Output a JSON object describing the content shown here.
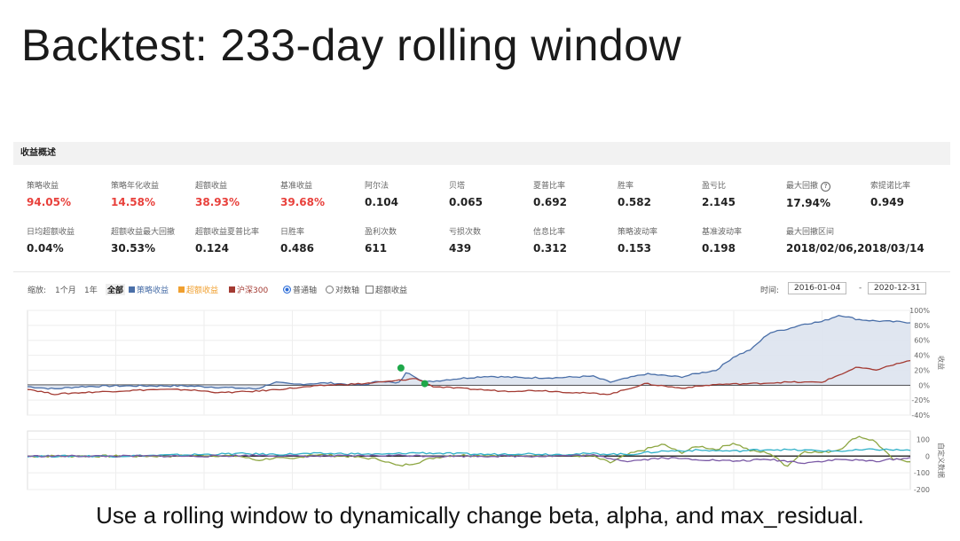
{
  "title": "Backtest: 233-day rolling window",
  "caption": "Use a rolling window to dynamically change beta, alpha, and max_residual.",
  "panel": {
    "header": "收益概述",
    "metrics_row1": [
      {
        "label": "策略收益",
        "value": "94.05%",
        "color": "#e8413c"
      },
      {
        "label": "策略年化收益",
        "value": "14.58%",
        "color": "#e8413c"
      },
      {
        "label": "超额收益",
        "value": "38.93%",
        "color": "#e8413c"
      },
      {
        "label": "基准收益",
        "value": "39.68%",
        "color": "#e8413c"
      },
      {
        "label": "阿尔法",
        "value": "0.104",
        "color": "#222222"
      },
      {
        "label": "贝塔",
        "value": "0.065",
        "color": "#222222"
      },
      {
        "label": "夏普比率",
        "value": "0.692",
        "color": "#222222"
      },
      {
        "label": "胜率",
        "value": "0.582",
        "color": "#222222"
      },
      {
        "label": "盈亏比",
        "value": "2.145",
        "color": "#222222"
      },
      {
        "label": "最大回撤",
        "value": "17.94%",
        "color": "#222222"
      },
      {
        "label": "索提诺比率",
        "value": "0.949",
        "color": "#222222"
      }
    ],
    "metrics_row2": [
      {
        "label": "日均超额收益",
        "value": "0.04%",
        "color": "#222222"
      },
      {
        "label": "超额收益最大回撤",
        "value": "30.53%",
        "color": "#222222"
      },
      {
        "label": "超额收益夏普比率",
        "value": "0.124",
        "color": "#222222"
      },
      {
        "label": "日胜率",
        "value": "0.486",
        "color": "#222222"
      },
      {
        "label": "盈利次数",
        "value": "611",
        "color": "#222222"
      },
      {
        "label": "亏损次数",
        "value": "439",
        "color": "#222222"
      },
      {
        "label": "信息比率",
        "value": "0.312",
        "color": "#222222"
      },
      {
        "label": "策略波动率",
        "value": "0.153",
        "color": "#222222"
      },
      {
        "label": "基准波动率",
        "value": "0.198",
        "color": "#222222"
      },
      {
        "label": "最大回撤区间",
        "value": "2018/02/06,2018/03/14",
        "color": "#222222"
      }
    ],
    "max_dd_help_icon": "question-circle-icon"
  },
  "controls": {
    "zoom_label": "缩放:",
    "zoom_options": [
      "1个月",
      "1年",
      "全部"
    ],
    "legend": [
      {
        "name": "策略收益",
        "color": "#4a6fa8"
      },
      {
        "name": "超额收益",
        "color": "#f0a030"
      },
      {
        "name": "沪深300",
        "color": "#a33a32"
      }
    ],
    "axis_normal": "普通轴",
    "axis_log": "对数轴",
    "excess_toggle": "超额收益",
    "time_label": "时间:",
    "date_start": "2016-01-04",
    "date_sep": "-",
    "date_end": "2020-12-31"
  },
  "chart_data": [
    {
      "type": "line",
      "ylabel": "收益",
      "ylim": [
        -40,
        100
      ],
      "y_ticks": [
        "100%",
        "80%",
        "60%",
        "40%",
        "20%",
        "0%",
        "-20%",
        "-40%"
      ],
      "x_range": [
        "2016-01-04",
        "2020-12-31"
      ],
      "series": [
        {
          "name": "策略收益",
          "color": "#4a6fa8",
          "x": [
            0,
            0.03,
            0.06,
            0.1,
            0.14,
            0.18,
            0.22,
            0.26,
            0.28,
            0.3,
            0.34,
            0.38,
            0.4,
            0.42,
            0.43,
            0.45,
            0.48,
            0.52,
            0.56,
            0.6,
            0.64,
            0.66,
            0.7,
            0.74,
            0.76,
            0.78,
            0.8,
            0.82,
            0.84,
            0.86,
            0.88,
            0.9,
            0.92,
            0.94,
            0.96,
            0.98,
            1.0
          ],
          "values": [
            -2,
            -5,
            -2,
            -1,
            -1,
            -1,
            -3,
            -5,
            4,
            1,
            3,
            0,
            6,
            2,
            18,
            4,
            8,
            12,
            10,
            10,
            12,
            4,
            15,
            11,
            16,
            20,
            38,
            48,
            70,
            75,
            82,
            85,
            94,
            88,
            86,
            85,
            84
          ]
        },
        {
          "name": "沪深300",
          "color": "#a33a32",
          "x": [
            0,
            0.03,
            0.06,
            0.1,
            0.14,
            0.18,
            0.22,
            0.26,
            0.3,
            0.34,
            0.38,
            0.41,
            0.44,
            0.46,
            0.5,
            0.54,
            0.58,
            0.62,
            0.66,
            0.7,
            0.74,
            0.78,
            0.82,
            0.86,
            0.9,
            0.92,
            0.94,
            0.96,
            0.98,
            1.0
          ],
          "values": [
            -5,
            -12,
            -10,
            -8,
            -6,
            -6,
            -10,
            -8,
            -4,
            0,
            2,
            5,
            9,
            -2,
            -5,
            -8,
            -7,
            -10,
            -12,
            2,
            -4,
            1,
            2,
            4,
            4,
            14,
            24,
            20,
            27,
            33
          ]
        }
      ],
      "markers": [
        {
          "x": 0.423,
          "y": 23,
          "color": "#1fa84a"
        },
        {
          "x": 0.45,
          "y": 2,
          "color": "#1fa84a"
        }
      ]
    },
    {
      "type": "line",
      "ylabel": "自定义数据",
      "ylim": [
        -200,
        150
      ],
      "y_ticks": [
        "100",
        "0",
        "-100",
        "-200"
      ],
      "series": [
        {
          "name": "",
          "color": "#8da642",
          "x": [
            0,
            0.08,
            0.16,
            0.2,
            0.24,
            0.26,
            0.28,
            0.3,
            0.32,
            0.36,
            0.4,
            0.42,
            0.44,
            0.46,
            0.48,
            0.52,
            0.56,
            0.6,
            0.64,
            0.66,
            0.68,
            0.7,
            0.72,
            0.74,
            0.76,
            0.78,
            0.8,
            0.82,
            0.84,
            0.86,
            0.88,
            0.9,
            0.92,
            0.94,
            0.96,
            0.98,
            1.0
          ],
          "values": [
            0,
            0,
            0,
            5,
            0,
            -25,
            -10,
            -20,
            10,
            0,
            -20,
            -60,
            -40,
            -10,
            5,
            5,
            0,
            5,
            0,
            -40,
            10,
            40,
            70,
            20,
            60,
            40,
            80,
            30,
            20,
            -60,
            30,
            20,
            40,
            120,
            90,
            -20,
            -30
          ]
        },
        {
          "name": "",
          "color": "#2fb0c8",
          "x": [
            0,
            0.1,
            0.2,
            0.24,
            0.28,
            0.32,
            0.36,
            0.4,
            0.44,
            0.48,
            0.52,
            0.56,
            0.6,
            0.64,
            0.68,
            0.72,
            0.76,
            0.8,
            0.84,
            0.88,
            0.92,
            0.96,
            1.0
          ],
          "values": [
            0,
            0,
            10,
            15,
            10,
            15,
            15,
            10,
            20,
            15,
            10,
            15,
            10,
            15,
            10,
            30,
            35,
            30,
            40,
            35,
            30,
            40,
            35
          ]
        },
        {
          "name": "",
          "color": "#7b5aa6",
          "x": [
            0,
            0.1,
            0.2,
            0.26,
            0.3,
            0.36,
            0.42,
            0.46,
            0.52,
            0.58,
            0.64,
            0.68,
            0.72,
            0.76,
            0.8,
            0.84,
            0.88,
            0.92,
            0.96,
            1.0
          ],
          "values": [
            0,
            0,
            0,
            5,
            0,
            0,
            5,
            0,
            0,
            0,
            5,
            -30,
            -10,
            -20,
            -30,
            -20,
            -40,
            -20,
            -30,
            -10
          ]
        }
      ]
    }
  ]
}
